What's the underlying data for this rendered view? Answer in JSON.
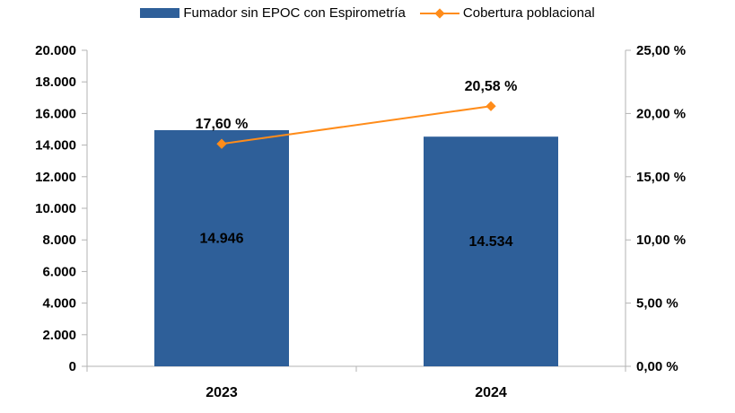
{
  "legend": {
    "bar_label": "Fumador sin EPOC con Espirometría",
    "line_label": "Cobertura poblacional"
  },
  "chart_data": {
    "type": "bar",
    "categories": [
      "2023",
      "2024"
    ],
    "series": [
      {
        "name": "Fumador sin EPOC con Espirometría",
        "type": "bar",
        "axis": "left",
        "values": [
          14946,
          14534
        ],
        "value_labels": [
          "14.946",
          "14.534"
        ],
        "color": "#2e5f99"
      },
      {
        "name": "Cobertura poblacional",
        "type": "line",
        "axis": "right",
        "values": [
          17.6,
          20.58
        ],
        "value_labels": [
          "17,60 %",
          "20,58 %"
        ],
        "color": "#ff8c1a"
      }
    ],
    "y_left": {
      "range": [
        0,
        20000
      ],
      "ticks": [
        "0",
        "2.000",
        "4.000",
        "6.000",
        "8.000",
        "10.000",
        "12.000",
        "14.000",
        "16.000",
        "18.000",
        "20.000"
      ]
    },
    "y_right": {
      "range": [
        0,
        25
      ],
      "ticks": [
        "0,00 %",
        "5,00 %",
        "10,00 %",
        "15,00 %",
        "20,00 %",
        "25,00 %"
      ]
    },
    "grid": false,
    "legend_position": "top"
  }
}
